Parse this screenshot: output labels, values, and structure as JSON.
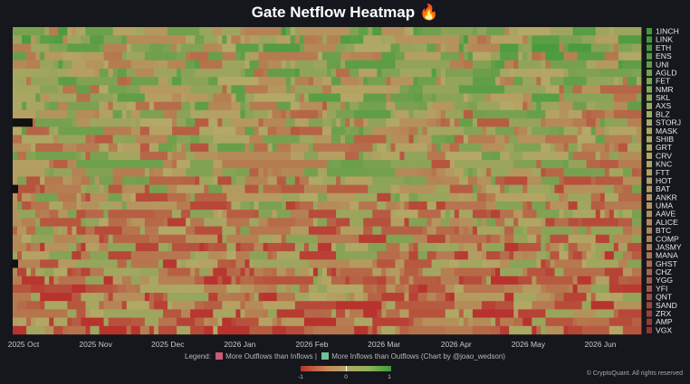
{
  "chart_data": {
    "type": "heatmap",
    "title": "Gate Netflow Heatmap",
    "title_icon": "fire-icon",
    "rows": [
      "1INCH",
      "LINK",
      "ETH",
      "ENS",
      "UNI",
      "AGLD",
      "FET",
      "NMR",
      "SKL",
      "AXS",
      "BLZ",
      "STORJ",
      "MASK",
      "SHIB",
      "GRT",
      "CRV",
      "KNC",
      "FTT",
      "HOT",
      "BAT",
      "ANKR",
      "UMA",
      "AAVE",
      "ALICE",
      "BTC",
      "COMP",
      "JASMY",
      "MANA",
      "GHST",
      "CHZ",
      "YGG",
      "YFI",
      "QNT",
      "SAND",
      "ZRX",
      "AMP",
      "VGX"
    ],
    "row_colors": [
      "#3f9a3a",
      "#3f9a3a",
      "#3f9a3a",
      "#4e9e3e",
      "#5ea143",
      "#6ea548",
      "#7ba84c",
      "#85ab50",
      "#8fae54",
      "#97ae57",
      "#9daf5a",
      "#a2ae5c",
      "#a6ac5d",
      "#aaaa5f",
      "#aea861",
      "#b0a562",
      "#b2a363",
      "#b3a063",
      "#b39d63",
      "#b39a62",
      "#b39762",
      "#b39361",
      "#b28f60",
      "#b28a5e",
      "#b1855c",
      "#b0805a",
      "#ae7a57",
      "#ac7353",
      "#aa6c4f",
      "#a7654b",
      "#a45e47",
      "#a15643",
      "#9e4f3f",
      "#9b483c",
      "#984238",
      "#953c35",
      "#923532"
    ],
    "x_ticks": [
      "2025 Oct",
      "2025 Nov",
      "2025 Dec",
      "2026 Jan",
      "2026 Feb",
      "2026 Mar",
      "2026 Apr",
      "2026 May",
      "2026 Jun"
    ],
    "value_range": [
      -1,
      1
    ],
    "colorbar_ticks": [
      "-1",
      "0",
      "1"
    ],
    "colors": {
      "outflow": "#b8332e",
      "neutral": "#b4a866",
      "inflow": "#3f9a3a"
    },
    "columns": 138
  },
  "legend": {
    "prefix": "Legend:",
    "outflows_label": "More Outflows than Inflows |",
    "inflows_label": "More Inflows than Outflows (Chart by @joao_wedson)",
    "outflow_swatch_color": "#c95a7a",
    "inflow_swatch_color": "#6fbf9a"
  },
  "copyright": "© CryptoQuant. All rights reserved"
}
